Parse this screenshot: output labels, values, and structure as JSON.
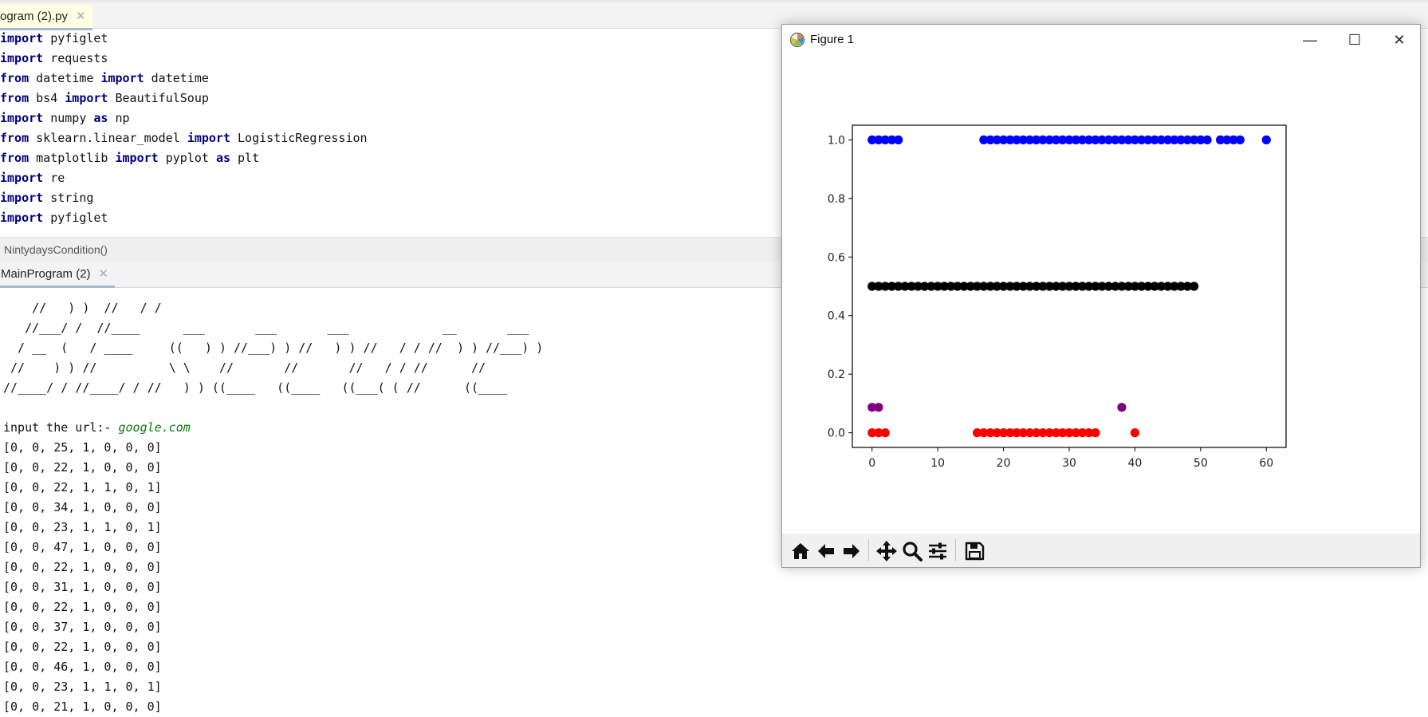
{
  "editor": {
    "tab_label": "ogram (2).py",
    "tab_close": "✕",
    "code_lines": [
      [
        {
          "t": "import",
          "k": true
        },
        {
          "t": " pyfiglet"
        }
      ],
      [
        {
          "t": "import",
          "k": true
        },
        {
          "t": " requests"
        }
      ],
      [
        {
          "t": "from",
          "k": true
        },
        {
          "t": " datetime "
        },
        {
          "t": "import",
          "k": true
        },
        {
          "t": " datetime"
        }
      ],
      [
        {
          "t": "from",
          "k": true
        },
        {
          "t": " bs4 "
        },
        {
          "t": "import",
          "k": true
        },
        {
          "t": " BeautifulSoup"
        }
      ],
      [
        {
          "t": "import",
          "k": true
        },
        {
          "t": " numpy "
        },
        {
          "t": "as",
          "k": true
        },
        {
          "t": " np"
        }
      ],
      [
        {
          "t": "from",
          "k": true
        },
        {
          "t": " sklearn.linear_model "
        },
        {
          "t": "import",
          "k": true
        },
        {
          "t": " LogisticRegression"
        }
      ],
      [
        {
          "t": "from",
          "k": true
        },
        {
          "t": " matplotlib "
        },
        {
          "t": "import",
          "k": true
        },
        {
          "t": " pyplot "
        },
        {
          "t": "as",
          "k": true
        },
        {
          "t": " plt"
        }
      ],
      [
        {
          "t": "import",
          "k": true
        },
        {
          "t": " re"
        }
      ],
      [
        {
          "t": "import",
          "k": true
        },
        {
          "t": " string"
        }
      ],
      [
        {
          "t": "import",
          "k": true
        },
        {
          "t": " pyfiglet"
        }
      ]
    ],
    "breadcrumb": "NintydaysCondition()"
  },
  "console": {
    "tab_label": "MainProgram (2)",
    "tab_close": "✕",
    "ascii_art": [
      "    //   ) )  //   / /",
      "   //___/ /  //____      ___       ___       ___             __       ___",
      "  / __  (   / ____     ((   ) ) //___) ) //   ) ) //   / / //  ) ) //___) )",
      " //    ) ) //          \\ \\    //       //       //   / / //      //",
      "//____/ / //____/ / //   ) ) ((____   ((____   ((___( ( //      ((____"
    ],
    "input_prompt": "input the url:- ",
    "input_value": "google.com",
    "output_lines": [
      "[0, 0, 25, 1, 0, 0, 0]",
      "[0, 0, 22, 1, 0, 0, 0]",
      "[0, 0, 22, 1, 1, 0, 1]",
      "[0, 0, 34, 1, 0, 0, 0]",
      "[0, 0, 23, 1, 1, 0, 1]",
      "[0, 0, 47, 1, 0, 0, 0]",
      "[0, 0, 22, 1, 0, 0, 0]",
      "[0, 0, 31, 1, 0, 0, 0]",
      "[0, 0, 22, 1, 0, 0, 0]",
      "[0, 0, 37, 1, 0, 0, 0]",
      "[0, 0, 22, 1, 0, 0, 0]",
      "[0, 0, 46, 1, 0, 0, 0]",
      "[0, 0, 23, 1, 1, 0, 1]",
      "[0, 0, 21, 1, 0, 0, 0]"
    ]
  },
  "figure": {
    "title": "Figure 1",
    "minimize": "—",
    "maximize": "☐",
    "close": "✕",
    "toolbar_icons": [
      "home-icon",
      "back-arrow-icon",
      "forward-arrow-icon",
      "pan-icon",
      "zoom-icon",
      "configure-subplots-icon",
      "save-icon"
    ]
  },
  "chart_data": {
    "type": "scatter",
    "title": "",
    "xlabel": "",
    "ylabel": "",
    "xlim": [
      -3,
      63
    ],
    "ylim": [
      -0.05,
      1.05
    ],
    "xticks": [
      0,
      10,
      20,
      30,
      40,
      50,
      60
    ],
    "yticks": [
      0.0,
      0.2,
      0.4,
      0.6,
      0.8,
      1.0
    ],
    "xtick_labels": [
      "0",
      "10",
      "20",
      "30",
      "40",
      "50",
      "60"
    ],
    "ytick_labels": [
      "0.0",
      "0.2",
      "0.4",
      "0.6",
      "0.8",
      "1.0"
    ],
    "grid": false,
    "series": [
      {
        "color": "#0000ff",
        "points": [
          [
            0,
            1
          ],
          [
            1,
            1
          ],
          [
            2,
            1
          ],
          [
            3,
            1
          ],
          [
            4,
            1
          ],
          [
            17,
            1
          ],
          [
            18,
            1
          ],
          [
            19,
            1
          ],
          [
            20,
            1
          ],
          [
            21,
            1
          ],
          [
            22,
            1
          ],
          [
            23,
            1
          ],
          [
            24,
            1
          ],
          [
            25,
            1
          ],
          [
            26,
            1
          ],
          [
            27,
            1
          ],
          [
            28,
            1
          ],
          [
            29,
            1
          ],
          [
            30,
            1
          ],
          [
            31,
            1
          ],
          [
            32,
            1
          ],
          [
            33,
            1
          ],
          [
            34,
            1
          ],
          [
            35,
            1
          ],
          [
            36,
            1
          ],
          [
            37,
            1
          ],
          [
            38,
            1
          ],
          [
            39,
            1
          ],
          [
            40,
            1
          ],
          [
            41,
            1
          ],
          [
            42,
            1
          ],
          [
            43,
            1
          ],
          [
            44,
            1
          ],
          [
            45,
            1
          ],
          [
            46,
            1
          ],
          [
            47,
            1
          ],
          [
            48,
            1
          ],
          [
            49,
            1
          ],
          [
            50,
            1
          ],
          [
            51,
            1
          ],
          [
            53,
            1
          ],
          [
            54,
            1
          ],
          [
            55,
            1
          ],
          [
            56,
            1
          ],
          [
            60,
            1
          ]
        ]
      },
      {
        "color": "#000000",
        "points": [
          [
            0,
            0.5
          ],
          [
            1,
            0.5
          ],
          [
            2,
            0.5
          ],
          [
            3,
            0.5
          ],
          [
            4,
            0.5
          ],
          [
            5,
            0.5
          ],
          [
            6,
            0.5
          ],
          [
            7,
            0.5
          ],
          [
            8,
            0.5
          ],
          [
            9,
            0.5
          ],
          [
            10,
            0.5
          ],
          [
            11,
            0.5
          ],
          [
            12,
            0.5
          ],
          [
            13,
            0.5
          ],
          [
            14,
            0.5
          ],
          [
            15,
            0.5
          ],
          [
            16,
            0.5
          ],
          [
            17,
            0.5
          ],
          [
            18,
            0.5
          ],
          [
            19,
            0.5
          ],
          [
            20,
            0.5
          ],
          [
            21,
            0.5
          ],
          [
            22,
            0.5
          ],
          [
            23,
            0.5
          ],
          [
            24,
            0.5
          ],
          [
            25,
            0.5
          ],
          [
            26,
            0.5
          ],
          [
            27,
            0.5
          ],
          [
            28,
            0.5
          ],
          [
            29,
            0.5
          ],
          [
            30,
            0.5
          ],
          [
            31,
            0.5
          ],
          [
            32,
            0.5
          ],
          [
            33,
            0.5
          ],
          [
            34,
            0.5
          ],
          [
            35,
            0.5
          ],
          [
            36,
            0.5
          ],
          [
            37,
            0.5
          ],
          [
            38,
            0.5
          ],
          [
            39,
            0.5
          ],
          [
            40,
            0.5
          ],
          [
            41,
            0.5
          ],
          [
            42,
            0.5
          ],
          [
            43,
            0.5
          ],
          [
            44,
            0.5
          ],
          [
            45,
            0.5
          ],
          [
            46,
            0.5
          ],
          [
            47,
            0.5
          ],
          [
            48,
            0.5
          ],
          [
            49,
            0.5
          ]
        ]
      },
      {
        "color": "#800080",
        "points": [
          [
            0,
            0.087
          ],
          [
            1,
            0.087
          ],
          [
            38,
            0.087
          ]
        ]
      },
      {
        "color": "#ff0000",
        "points": [
          [
            0,
            0
          ],
          [
            1,
            0
          ],
          [
            2,
            0
          ],
          [
            16,
            0
          ],
          [
            17,
            0
          ],
          [
            18,
            0
          ],
          [
            19,
            0
          ],
          [
            20,
            0
          ],
          [
            21,
            0
          ],
          [
            22,
            0
          ],
          [
            23,
            0
          ],
          [
            24,
            0
          ],
          [
            25,
            0
          ],
          [
            26,
            0
          ],
          [
            27,
            0
          ],
          [
            28,
            0
          ],
          [
            29,
            0
          ],
          [
            30,
            0
          ],
          [
            31,
            0
          ],
          [
            32,
            0
          ],
          [
            33,
            0
          ],
          [
            34,
            0
          ],
          [
            40,
            0
          ]
        ]
      }
    ]
  }
}
